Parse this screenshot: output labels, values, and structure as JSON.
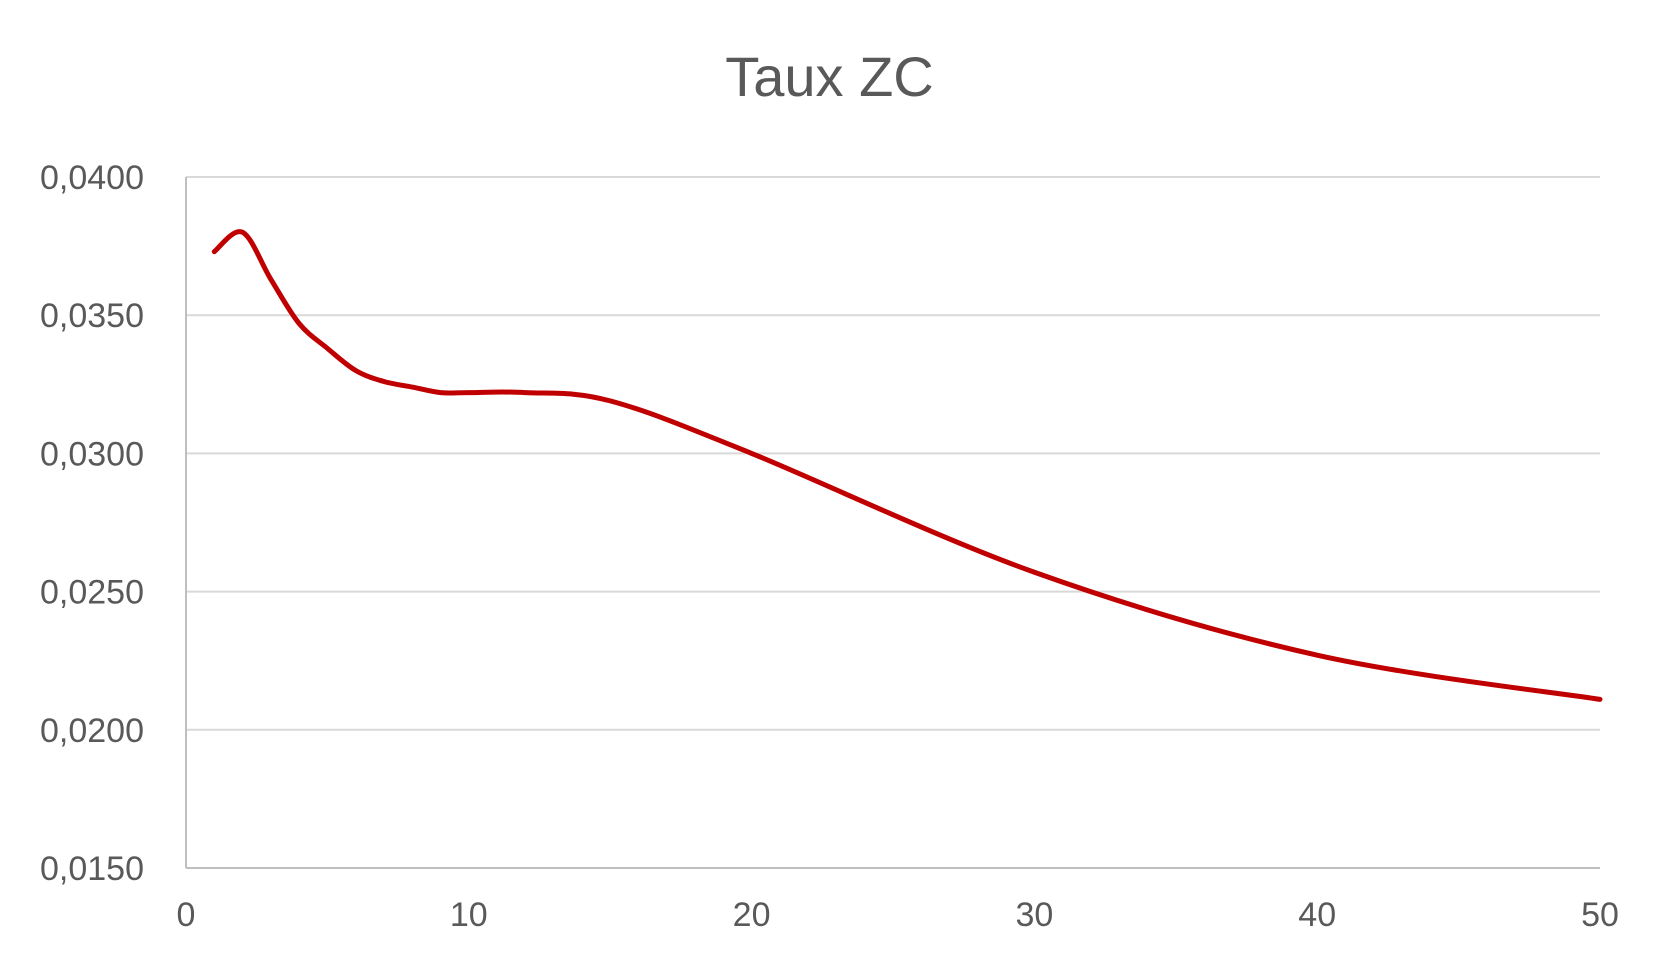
{
  "chart_data": {
    "type": "line",
    "title": "Taux ZC",
    "xlabel": "",
    "ylabel": "",
    "xlim": [
      0,
      50
    ],
    "ylim": [
      0.015,
      0.04
    ],
    "x_ticks": [
      "0",
      "10",
      "20",
      "30",
      "40",
      "50"
    ],
    "y_ticks": [
      "0,0150",
      "0,0200",
      "0,0250",
      "0,0300",
      "0,0350",
      "0,0400"
    ],
    "grid": true,
    "legend": "none",
    "line_color": "#C00000",
    "series": [
      {
        "x": [
          1,
          2,
          3,
          4,
          5,
          6,
          7,
          8,
          9,
          10,
          12,
          15,
          20,
          30,
          40,
          50
        ],
        "values": [
          0.0373,
          0.038,
          0.0363,
          0.0347,
          0.0338,
          0.033,
          0.0326,
          0.0324,
          0.0322,
          0.0322,
          0.0322,
          0.0319,
          0.03,
          0.0257,
          0.0227,
          0.0211
        ]
      }
    ]
  }
}
